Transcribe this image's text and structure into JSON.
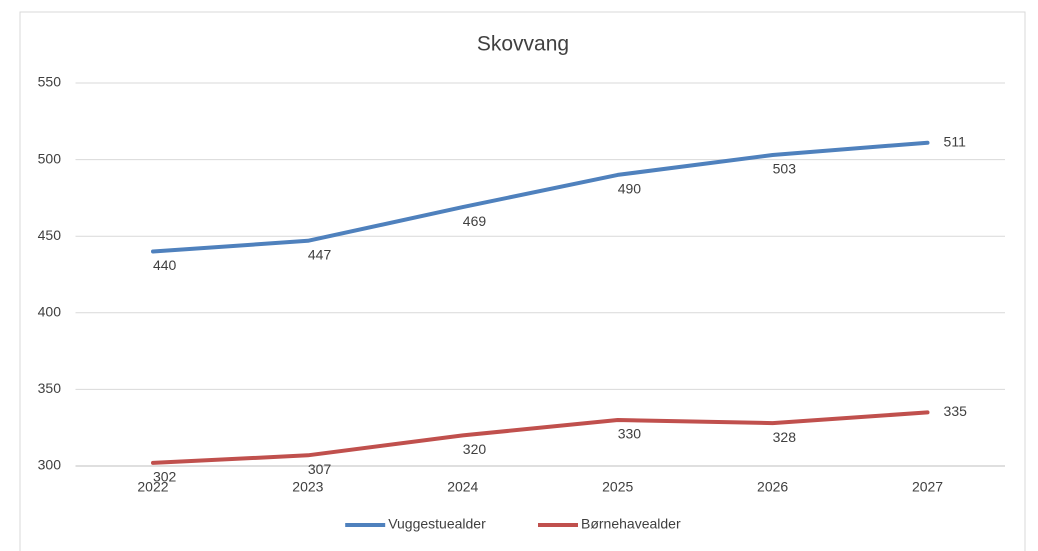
{
  "chart_data": {
    "type": "line",
    "title": "Skovvang",
    "categories": [
      "2022",
      "2023",
      "2024",
      "2025",
      "2026",
      "2027"
    ],
    "series": [
      {
        "name": "Vuggestuealder",
        "color": "#4f81bd",
        "values": [
          440,
          447,
          469,
          490,
          503,
          511
        ]
      },
      {
        "name": "Børnehavealder",
        "color": "#c0504d",
        "values": [
          302,
          307,
          320,
          330,
          328,
          335
        ]
      }
    ],
    "ylim": [
      300,
      550
    ],
    "yticks": [
      300,
      350,
      400,
      450,
      500,
      550
    ],
    "grid": true,
    "legend": "bottom"
  }
}
